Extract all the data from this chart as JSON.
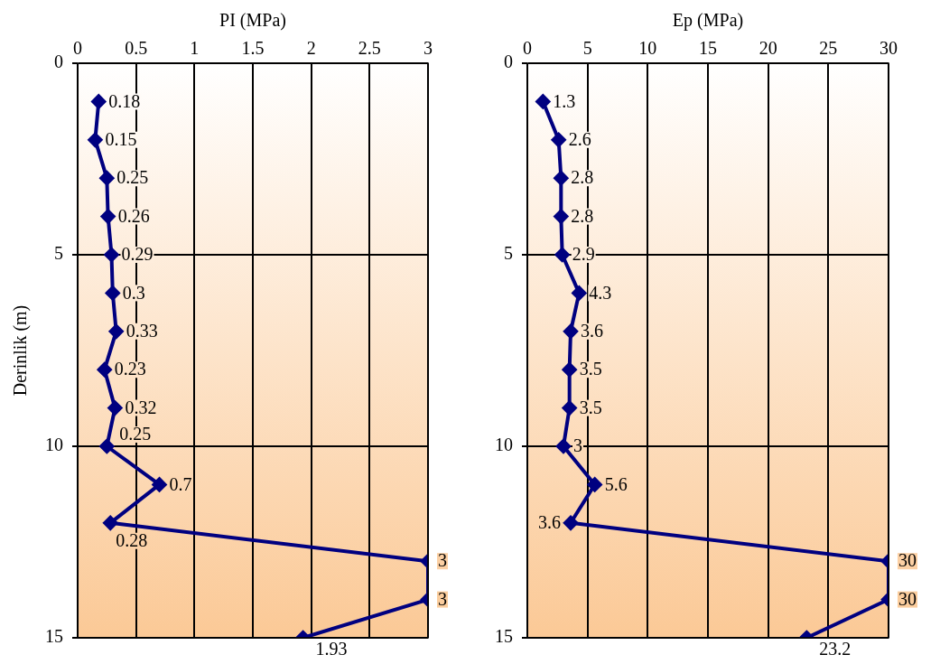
{
  "chart_data": [
    {
      "type": "line",
      "orientation": "horizontal",
      "xlabel": "PI (MPa)",
      "ylabel": "Derinlik (m)",
      "xlim": [
        0,
        3
      ],
      "xticks": [
        0,
        0.5,
        1,
        1.5,
        2,
        2.5,
        3
      ],
      "ylim": [
        15,
        0
      ],
      "yticks": [
        0,
        5,
        10,
        15
      ],
      "grid": true,
      "marker": "diamond",
      "line_style": "solid",
      "data_labels": true,
      "series": [
        {
          "color": "#000080",
          "values": [
            0.18,
            0.15,
            0.25,
            0.26,
            0.29,
            0.3,
            0.33,
            0.23,
            0.32,
            0.25,
            0.7,
            0.28,
            3,
            3,
            1.93
          ],
          "x": [
            1,
            2,
            3,
            4,
            5,
            6,
            7,
            8,
            9,
            10,
            11,
            12,
            13,
            14,
            15
          ]
        }
      ]
    },
    {
      "type": "line",
      "orientation": "horizontal",
      "xlabel": "Ep (MPa)",
      "xlim": [
        0,
        30
      ],
      "xticks": [
        0,
        5,
        10,
        15,
        20,
        25,
        30
      ],
      "ylim": [
        15,
        0
      ],
      "yticks": [
        0,
        5,
        10,
        15
      ],
      "grid": true,
      "marker": "diamond",
      "line_style": "solid",
      "data_labels": true,
      "series": [
        {
          "color": "#000080",
          "values": [
            1.3,
            2.6,
            2.8,
            2.8,
            2.9,
            4.3,
            3.6,
            3.5,
            3.5,
            3,
            5.6,
            3.6,
            30,
            30,
            23.2
          ],
          "x": [
            1,
            2,
            3,
            4,
            5,
            6,
            7,
            8,
            9,
            10,
            11,
            12,
            13,
            14,
            15
          ]
        }
      ]
    }
  ]
}
